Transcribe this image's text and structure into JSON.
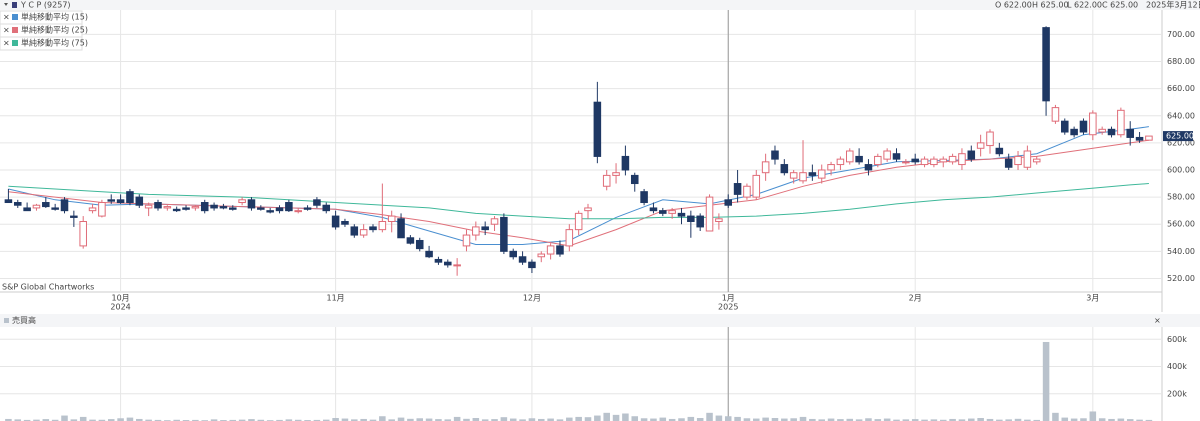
{
  "chart_data": {
    "type": "candlestick",
    "title": "Y C P (9257)",
    "date": "2025年3月12日",
    "open": {
      "value": 622,
      "label": "O 622.00"
    },
    "high": {
      "value": 625,
      "label": "H 625.00"
    },
    "low": {
      "value": 622,
      "label": "L 622.00"
    },
    "close": {
      "value": 625,
      "label": "C 625.00"
    },
    "last_price": {
      "value": 625,
      "label": "625.00"
    },
    "watermark": "S&P Global Chartworks",
    "up_color": "#e06c78",
    "down_color": "#1f3864",
    "grid": true,
    "xlim": [
      -0.9,
      123.4
    ],
    "ylim": [
      510,
      718
    ],
    "yticks": [
      {
        "value": 520,
        "label": "520.00"
      },
      {
        "value": 540,
        "label": "540.00"
      },
      {
        "value": 560,
        "label": "560.00"
      },
      {
        "value": 580,
        "label": "580.00"
      },
      {
        "value": 600,
        "label": "600.00"
      },
      {
        "value": 620,
        "label": "620.00"
      },
      {
        "value": 640,
        "label": "640.00"
      },
      {
        "value": 660,
        "label": "660.00"
      },
      {
        "value": 680,
        "label": "680.00"
      },
      {
        "value": 700,
        "label": "700.00"
      }
    ],
    "month_ticks": [
      {
        "value": 12,
        "label": "10月"
      },
      {
        "value": 35,
        "label": "11月"
      },
      {
        "value": 56,
        "label": "12月"
      },
      {
        "value": 77,
        "label": "1月"
      },
      {
        "value": 97,
        "label": "2月"
      },
      {
        "value": 116,
        "label": "3月"
      }
    ],
    "year_ticks": [
      {
        "value": 12,
        "label": "2024"
      },
      {
        "value": 77,
        "label": "2025"
      }
    ],
    "ohlc": [
      [
        578,
        586,
        576,
        576
      ],
      [
        576,
        578,
        572,
        574
      ],
      [
        572,
        576,
        570,
        570
      ],
      [
        572,
        575,
        570,
        574
      ],
      [
        576,
        580,
        572,
        573
      ],
      [
        572,
        575,
        570,
        571
      ],
      [
        578,
        580,
        568,
        570
      ],
      [
        566,
        570,
        558,
        565
      ],
      [
        544,
        566,
        542,
        562
      ],
      [
        570,
        575,
        568,
        572
      ],
      [
        566,
        578,
        565,
        576
      ],
      [
        578,
        582,
        575,
        577
      ],
      [
        578,
        582,
        575,
        576
      ],
      [
        584,
        586,
        574,
        576
      ],
      [
        580,
        582,
        572,
        574
      ],
      [
        572,
        576,
        566,
        574
      ],
      [
        576,
        578,
        570,
        572
      ],
      [
        572,
        574,
        570,
        573
      ],
      [
        571,
        573,
        569,
        570
      ],
      [
        572,
        574,
        570,
        571
      ],
      [
        572,
        574,
        570,
        573
      ],
      [
        576,
        578,
        568,
        570
      ],
      [
        574,
        576,
        570,
        572
      ],
      [
        573,
        575,
        571,
        572
      ],
      [
        572,
        574,
        570,
        571
      ],
      [
        576,
        580,
        574,
        578
      ],
      [
        578,
        580,
        570,
        572
      ],
      [
        572,
        574,
        570,
        571
      ],
      [
        570,
        572,
        568,
        569
      ],
      [
        572,
        574,
        568,
        570
      ],
      [
        576,
        578,
        569,
        570
      ],
      [
        570,
        572,
        568,
        570
      ],
      [
        572,
        574,
        570,
        571
      ],
      [
        578,
        580,
        572,
        574
      ],
      [
        574,
        576,
        568,
        570
      ],
      [
        566,
        570,
        556,
        558
      ],
      [
        562,
        564,
        558,
        560
      ],
      [
        558,
        560,
        550,
        552
      ],
      [
        552,
        560,
        550,
        556
      ],
      [
        558,
        560,
        554,
        556
      ],
      [
        556,
        590,
        554,
        562
      ],
      [
        562,
        570,
        554,
        566
      ],
      [
        564,
        568,
        552,
        550
      ],
      [
        550,
        552,
        545,
        546
      ],
      [
        548,
        550,
        540,
        542
      ],
      [
        540,
        544,
        535,
        536
      ],
      [
        534,
        536,
        530,
        532
      ],
      [
        532,
        534,
        528,
        530
      ],
      [
        530,
        535,
        522,
        530
      ],
      [
        544,
        556,
        540,
        552
      ],
      [
        552,
        562,
        548,
        558
      ],
      [
        558,
        562,
        552,
        556
      ],
      [
        560,
        566,
        555,
        564
      ],
      [
        565,
        568,
        538,
        540
      ],
      [
        540,
        542,
        534,
        536
      ],
      [
        536,
        540,
        530,
        532
      ],
      [
        532,
        534,
        524,
        528
      ],
      [
        536,
        540,
        532,
        538
      ],
      [
        538,
        546,
        534,
        544
      ],
      [
        544,
        548,
        536,
        538
      ],
      [
        544,
        560,
        540,
        556
      ],
      [
        556,
        570,
        552,
        568
      ],
      [
        570,
        575,
        564,
        572
      ],
      [
        650,
        665,
        605,
        610
      ],
      [
        588,
        600,
        585,
        596
      ],
      [
        596,
        605,
        590,
        598
      ],
      [
        610,
        618,
        596,
        600
      ],
      [
        596,
        598,
        584,
        590
      ],
      [
        584,
        586,
        574,
        576
      ],
      [
        572,
        576,
        568,
        570
      ],
      [
        570,
        572,
        566,
        568
      ],
      [
        568,
        572,
        564,
        570
      ],
      [
        568,
        572,
        560,
        566
      ],
      [
        566,
        570,
        550,
        562
      ],
      [
        566,
        568,
        555,
        558
      ],
      [
        555,
        582,
        555,
        580
      ],
      [
        562,
        568,
        556,
        564
      ],
      [
        578,
        582,
        572,
        574
      ],
      [
        590,
        600,
        576,
        582
      ],
      [
        580,
        590,
        578,
        588
      ],
      [
        580,
        600,
        578,
        596
      ],
      [
        598,
        612,
        592,
        606
      ],
      [
        614,
        618,
        604,
        608
      ],
      [
        604,
        608,
        596,
        598
      ],
      [
        594,
        600,
        590,
        598
      ],
      [
        592,
        622,
        590,
        598
      ],
      [
        598,
        604,
        592,
        596
      ],
      [
        594,
        604,
        590,
        600
      ],
      [
        600,
        606,
        596,
        604
      ],
      [
        604,
        610,
        600,
        608
      ],
      [
        606,
        616,
        604,
        614
      ],
      [
        610,
        616,
        604,
        606
      ],
      [
        604,
        608,
        596,
        600
      ],
      [
        604,
        612,
        602,
        610
      ],
      [
        608,
        616,
        606,
        614
      ],
      [
        612,
        616,
        606,
        608
      ],
      [
        606,
        608,
        604,
        606
      ],
      [
        608,
        612,
        604,
        606
      ],
      [
        604,
        610,
        602,
        608
      ],
      [
        604,
        610,
        602,
        608
      ],
      [
        606,
        610,
        602,
        608
      ],
      [
        606,
        612,
        604,
        610
      ],
      [
        604,
        616,
        600,
        612
      ],
      [
        614,
        618,
        606,
        608
      ],
      [
        616,
        626,
        610,
        620
      ],
      [
        618,
        630,
        612,
        628
      ],
      [
        616,
        620,
        610,
        612
      ],
      [
        608,
        612,
        600,
        602
      ],
      [
        604,
        614,
        600,
        610
      ],
      [
        602,
        618,
        600,
        614
      ],
      [
        606,
        610,
        604,
        608
      ],
      [
        705,
        706,
        640,
        651
      ],
      [
        636,
        648,
        634,
        646
      ],
      [
        636,
        638,
        626,
        628
      ],
      [
        630,
        632,
        624,
        626
      ],
      [
        636,
        638,
        626,
        628
      ],
      [
        626,
        644,
        622,
        642
      ],
      [
        628,
        632,
        626,
        630
      ],
      [
        630,
        632,
        624,
        626
      ],
      [
        626,
        646,
        624,
        644
      ],
      [
        630,
        636,
        618,
        624
      ],
      [
        624,
        628,
        620,
        622
      ],
      [
        622,
        625,
        622,
        625
      ]
    ],
    "series": [
      {
        "name": "単純移動平均 (15)",
        "color": "#4a8fd0",
        "x": [
          0,
          5,
          10,
          15,
          20,
          25,
          30,
          35,
          40,
          45,
          50,
          55,
          60,
          65,
          70,
          75,
          80,
          85,
          90,
          95,
          100,
          105,
          110,
          115,
          120,
          122
        ],
        "values": [
          586,
          578,
          574,
          575,
          574,
          573,
          572,
          571,
          565,
          555,
          545,
          545,
          548,
          565,
          578,
          575,
          582,
          594,
          600,
          606,
          607,
          608,
          612,
          626,
          630,
          632
        ]
      },
      {
        "name": "単純移動平均 (25)",
        "color": "#e0707a",
        "x": [
          0,
          5,
          10,
          15,
          20,
          25,
          30,
          35,
          40,
          45,
          50,
          55,
          60,
          65,
          70,
          75,
          80,
          85,
          90,
          95,
          100,
          105,
          110,
          115,
          120,
          122
        ],
        "values": [
          584,
          580,
          576,
          575,
          574,
          573,
          572,
          571,
          567,
          562,
          555,
          550,
          544,
          556,
          570,
          574,
          578,
          588,
          596,
          602,
          606,
          608,
          610,
          615,
          620,
          622
        ]
      },
      {
        "name": "単純移動平均 (75)",
        "color": "#3fb89a",
        "x": [
          0,
          5,
          10,
          15,
          20,
          25,
          30,
          35,
          40,
          45,
          50,
          55,
          60,
          65,
          70,
          75,
          80,
          85,
          90,
          95,
          100,
          105,
          110,
          115,
          120,
          122
        ],
        "values": [
          588,
          586,
          584,
          582,
          581,
          580,
          578,
          576,
          574,
          572,
          568,
          566,
          564,
          564,
          565,
          565,
          566,
          568,
          571,
          575,
          578,
          580,
          583,
          586,
          589,
          590
        ]
      }
    ],
    "volume": {
      "title": "売買高",
      "color": "#b9c2cc",
      "ylim": [
        0,
        690000
      ],
      "yticks": [
        {
          "value": 200000,
          "label": "200k"
        },
        {
          "value": 400000,
          "label": "400k"
        },
        {
          "value": 600000,
          "label": "600k"
        }
      ],
      "values": [
        15000,
        12000,
        8000,
        10000,
        14000,
        9000,
        40000,
        12000,
        30000,
        10000,
        9000,
        14000,
        20000,
        25000,
        15000,
        10000,
        8000,
        6000,
        9000,
        7000,
        8000,
        6000,
        12000,
        7000,
        8000,
        10000,
        14000,
        9000,
        6000,
        8000,
        12000,
        9000,
        7000,
        8000,
        10000,
        22000,
        18000,
        12000,
        15000,
        10000,
        35000,
        12000,
        25000,
        16000,
        20000,
        18000,
        14000,
        12000,
        30000,
        16000,
        22000,
        12000,
        14000,
        28000,
        18000,
        12000,
        20000,
        15000,
        18000,
        12000,
        25000,
        30000,
        28000,
        40000,
        60000,
        45000,
        55000,
        35000,
        20000,
        18000,
        25000,
        15000,
        20000,
        30000,
        22000,
        60000,
        40000,
        35000,
        30000,
        20000,
        18000,
        25000,
        22000,
        18000,
        20000,
        30000,
        15000,
        12000,
        18000,
        14000,
        16000,
        12000,
        20000,
        14000,
        18000,
        10000,
        12000,
        14000,
        10000,
        12000,
        9000,
        15000,
        12000,
        18000,
        22000,
        15000,
        10000,
        12000,
        16000,
        10000,
        8000,
        580000,
        60000,
        25000,
        18000,
        20000,
        70000,
        20000,
        15000,
        18000,
        14000,
        10000,
        8000
      ]
    }
  }
}
